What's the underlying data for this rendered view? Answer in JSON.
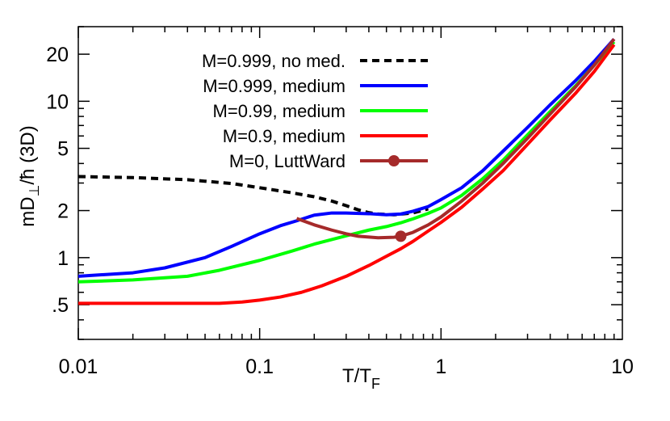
{
  "chart_data": {
    "type": "line",
    "xlabel": "T/T",
    "xlabel_sub": "F",
    "ylabel": "mD",
    "ylabel_sub": "⊥",
    "ylabel_rest": "/ħ (3D)",
    "xscale": "log",
    "yscale": "log",
    "xlim": [
      0.01,
      10
    ],
    "ylim": [
      0.3,
      30
    ],
    "xticks": [
      {
        "value": 0.01,
        "label": "0.01"
      },
      {
        "value": 0.1,
        "label": "0.1"
      },
      {
        "value": 1,
        "label": "1"
      },
      {
        "value": 10,
        "label": "10"
      }
    ],
    "yticks": [
      {
        "value": 0.5,
        "label": ".5"
      },
      {
        "value": 1,
        "label": "1"
      },
      {
        "value": 2,
        "label": "2"
      },
      {
        "value": 5,
        "label": "5"
      },
      {
        "value": 10,
        "label": "10"
      },
      {
        "value": 20,
        "label": "20"
      }
    ],
    "legend_position": "top-left",
    "grid": false,
    "series": [
      {
        "name": "M=0.999, no med.",
        "color": "#000000",
        "dashed": true,
        "marker": false,
        "points": [
          [
            0.01,
            3.3
          ],
          [
            0.02,
            3.25
          ],
          [
            0.04,
            3.15
          ],
          [
            0.07,
            2.98
          ],
          [
            0.1,
            2.8
          ],
          [
            0.15,
            2.6
          ],
          [
            0.2,
            2.45
          ],
          [
            0.25,
            2.3
          ],
          [
            0.3,
            2.15
          ],
          [
            0.35,
            2.02
          ],
          [
            0.4,
            1.94
          ],
          [
            0.45,
            1.9
          ],
          [
            0.55,
            1.88
          ],
          [
            0.7,
            1.93
          ],
          [
            0.85,
            2.05
          ]
        ]
      },
      {
        "name": "M=0.999, medium",
        "color": "#0000ff",
        "dashed": false,
        "marker": false,
        "points": [
          [
            0.01,
            0.76
          ],
          [
            0.02,
            0.8
          ],
          [
            0.03,
            0.86
          ],
          [
            0.05,
            1.0
          ],
          [
            0.07,
            1.18
          ],
          [
            0.1,
            1.42
          ],
          [
            0.13,
            1.6
          ],
          [
            0.16,
            1.72
          ],
          [
            0.2,
            1.87
          ],
          [
            0.25,
            1.93
          ],
          [
            0.3,
            1.93
          ],
          [
            0.4,
            1.91
          ],
          [
            0.5,
            1.88
          ],
          [
            0.6,
            1.9
          ],
          [
            0.7,
            1.98
          ],
          [
            0.85,
            2.12
          ],
          [
            1.0,
            2.35
          ],
          [
            1.3,
            2.8
          ],
          [
            1.7,
            3.6
          ],
          [
            2.2,
            4.8
          ],
          [
            3,
            6.8
          ],
          [
            4,
            9.5
          ],
          [
            5.5,
            13.5
          ],
          [
            7,
            18
          ],
          [
            9,
            25
          ]
        ]
      },
      {
        "name": "M=0.99, medium",
        "color": "#00ff00",
        "dashed": false,
        "marker": false,
        "points": [
          [
            0.01,
            0.7
          ],
          [
            0.02,
            0.72
          ],
          [
            0.04,
            0.76
          ],
          [
            0.06,
            0.83
          ],
          [
            0.1,
            0.96
          ],
          [
            0.15,
            1.1
          ],
          [
            0.2,
            1.22
          ],
          [
            0.3,
            1.38
          ],
          [
            0.4,
            1.5
          ],
          [
            0.5,
            1.58
          ],
          [
            0.6,
            1.67
          ],
          [
            0.7,
            1.77
          ],
          [
            0.85,
            1.92
          ],
          [
            1.0,
            2.08
          ],
          [
            1.3,
            2.5
          ],
          [
            1.7,
            3.2
          ],
          [
            2.2,
            4.2
          ],
          [
            3,
            6.1
          ],
          [
            4,
            8.6
          ],
          [
            5.5,
            12.5
          ],
          [
            7,
            17
          ],
          [
            9,
            24
          ]
        ]
      },
      {
        "name": "M=0.9, medium",
        "color": "#ff0000",
        "dashed": false,
        "marker": false,
        "points": [
          [
            0.01,
            0.51
          ],
          [
            0.03,
            0.51
          ],
          [
            0.06,
            0.51
          ],
          [
            0.08,
            0.52
          ],
          [
            0.1,
            0.535
          ],
          [
            0.13,
            0.56
          ],
          [
            0.17,
            0.6
          ],
          [
            0.22,
            0.66
          ],
          [
            0.3,
            0.76
          ],
          [
            0.4,
            0.89
          ],
          [
            0.5,
            1.02
          ],
          [
            0.6,
            1.14
          ],
          [
            0.7,
            1.27
          ],
          [
            0.85,
            1.48
          ],
          [
            1.0,
            1.68
          ],
          [
            1.3,
            2.1
          ],
          [
            1.7,
            2.75
          ],
          [
            2.2,
            3.6
          ],
          [
            3,
            5.3
          ],
          [
            4,
            7.6
          ],
          [
            5.5,
            11.2
          ],
          [
            7,
            15.5
          ],
          [
            9,
            23
          ]
        ]
      },
      {
        "name": "M=0, LuttWard",
        "color": "#a52a2a",
        "dashed": false,
        "marker": true,
        "marker_point": [
          0.6,
          1.37
        ],
        "points": [
          [
            0.16,
            1.78
          ],
          [
            0.2,
            1.62
          ],
          [
            0.25,
            1.5
          ],
          [
            0.3,
            1.42
          ],
          [
            0.35,
            1.37
          ],
          [
            0.45,
            1.34
          ],
          [
            0.55,
            1.35
          ],
          [
            0.6,
            1.37
          ],
          [
            0.7,
            1.45
          ],
          [
            0.85,
            1.62
          ],
          [
            1.0,
            1.82
          ],
          [
            1.3,
            2.3
          ],
          [
            1.7,
            3.0
          ],
          [
            2.2,
            4.0
          ],
          [
            3,
            5.8
          ],
          [
            4,
            8.3
          ],
          [
            5.5,
            12.3
          ],
          [
            7,
            17
          ],
          [
            9,
            25
          ]
        ]
      }
    ]
  }
}
